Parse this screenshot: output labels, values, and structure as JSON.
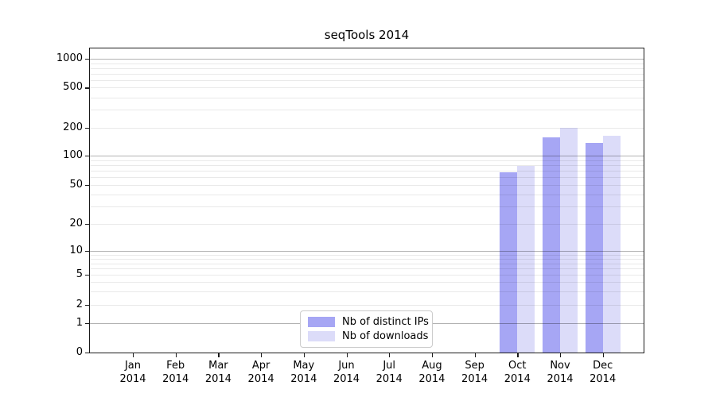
{
  "chart_data": {
    "type": "bar",
    "title": "seqTools 2014",
    "categories": [
      "Jan 2014",
      "Feb 2014",
      "Mar 2014",
      "Apr 2014",
      "May 2014",
      "Jun 2014",
      "Jul 2014",
      "Aug 2014",
      "Sep 2014",
      "Oct 2014",
      "Nov 2014",
      "Dec 2014"
    ],
    "series": [
      {
        "name": "Nb of distinct IPs",
        "color": "#a6a6f4",
        "values": [
          null,
          null,
          null,
          null,
          null,
          null,
          null,
          null,
          null,
          68,
          156,
          137
        ]
      },
      {
        "name": "Nb of downloads",
        "color": "#dcdcf9",
        "values": [
          null,
          null,
          null,
          null,
          null,
          null,
          null,
          null,
          null,
          78,
          200,
          163
        ]
      }
    ],
    "yticks": [
      0,
      1,
      2,
      5,
      10,
      20,
      50,
      100,
      200,
      500,
      1000
    ],
    "ylim": [
      0,
      1000
    ],
    "scale": "symlog",
    "grid": true,
    "legend_position": "lower center",
    "axis_color": "#1a1a1a",
    "background": "#ffffff"
  }
}
